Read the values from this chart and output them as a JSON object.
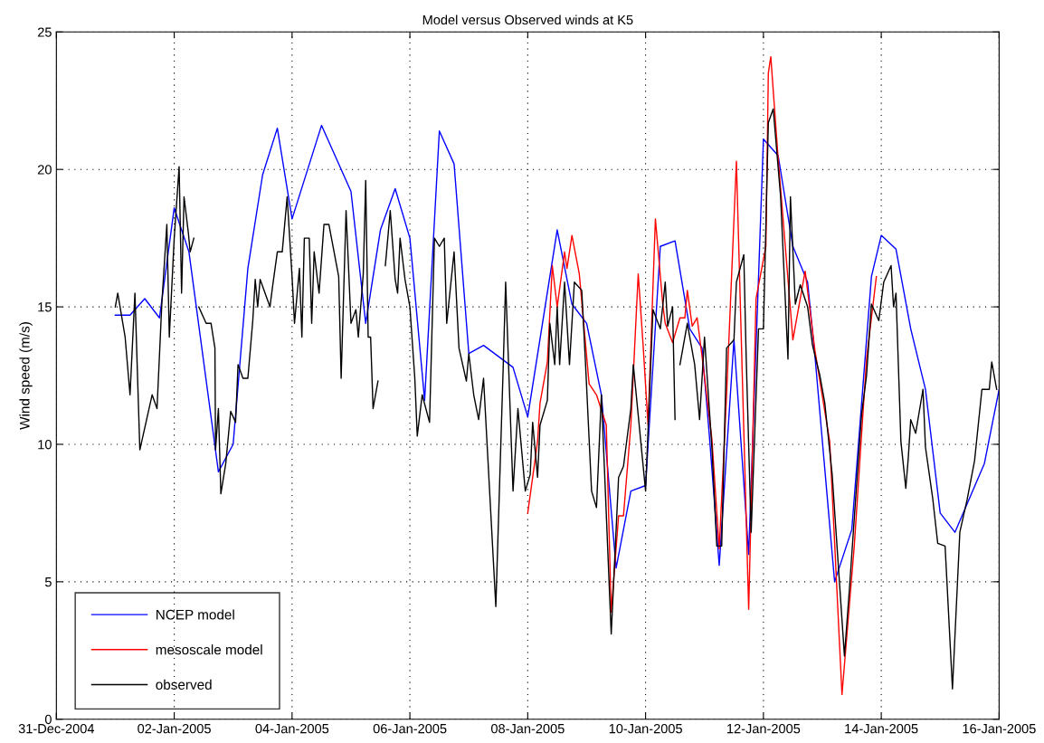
{
  "chart_data": {
    "type": "line",
    "title": "Model versus Observed winds at K5",
    "ylabel": "Wind speed (m/s)",
    "xlim": [
      "2004-12-31",
      "2005-01-16"
    ],
    "xticks": [
      {
        "value": "2004-12-31",
        "label": "31-Dec-2004"
      },
      {
        "value": "2005-01-02",
        "label": "02-Jan-2005"
      },
      {
        "value": "2005-01-04",
        "label": "04-Jan-2005"
      },
      {
        "value": "2005-01-06",
        "label": "06-Jan-2005"
      },
      {
        "value": "2005-01-08",
        "label": "08-Jan-2005"
      },
      {
        "value": "2005-01-10",
        "label": "10-Jan-2005"
      },
      {
        "value": "2005-01-12",
        "label": "12-Jan-2005"
      },
      {
        "value": "2005-01-14",
        "label": "14-Jan-2005"
      },
      {
        "value": "2005-01-16",
        "label": "16-Jan-2005"
      }
    ],
    "ylim": [
      0,
      25
    ],
    "yticks": [
      0,
      5,
      10,
      15,
      20,
      25
    ],
    "grid": true,
    "legend": "bottom left",
    "line_style": "solid",
    "marker": "none",
    "series": [
      {
        "name": "NCEP model",
        "color": "#0000ff",
        "x": [
          "2005-01-01T00:00",
          "2005-01-01T06:00",
          "2005-01-01T12:00",
          "2005-01-01T18:00",
          "2005-01-02T00:00",
          "2005-01-02T06:00",
          "2005-01-02T18:00",
          "2005-01-03T00:00",
          "2005-01-03T06:00",
          "2005-01-03T12:00",
          "2005-01-03T18:00",
          "2005-01-04T00:00",
          "2005-01-04T12:00",
          "2005-01-05T00:00",
          "2005-01-05T06:00",
          "2005-01-05T12:00",
          "2005-01-05T18:00",
          "2005-01-06T00:00",
          "2005-01-06T06:00",
          "2005-01-06T12:00",
          "2005-01-06T18:00",
          "2005-01-07T00:00",
          "2005-01-07T06:00",
          "2005-01-07T18:00",
          "2005-01-08T00:00",
          "2005-01-08T12:00",
          "2005-01-08T18:00",
          "2005-01-09T00:00",
          "2005-01-09T06:00",
          "2005-01-09T12:00",
          "2005-01-09T18:00",
          "2005-01-10T00:00",
          "2005-01-10T06:00",
          "2005-01-10T12:00",
          "2005-01-10T18:00",
          "2005-01-10T23:00",
          "2005-01-11T02:00",
          "2005-01-11T06:00",
          "2005-01-11T12:00",
          "2005-01-11T18:00",
          "2005-01-12T00:00",
          "2005-01-12T06:00",
          "2005-01-12T12:00",
          "2005-01-12T18:00",
          "2005-01-12T21:00",
          "2005-01-13T05:00",
          "2005-01-13T12:00",
          "2005-01-13T20:00",
          "2005-01-14T00:00",
          "2005-01-14T06:00",
          "2005-01-14T12:00",
          "2005-01-14T18:00",
          "2005-01-15T00:00",
          "2005-01-15T06:00",
          "2005-01-15T18:00",
          "2005-01-16T00:00"
        ],
        "values": [
          14.7,
          14.7,
          15.3,
          14.6,
          18.6,
          17.0,
          9.0,
          10.0,
          16.4,
          19.8,
          21.5,
          18.2,
          21.6,
          19.2,
          14.4,
          17.8,
          19.3,
          17.5,
          11.6,
          21.4,
          20.2,
          13.3,
          13.6,
          12.8,
          11.0,
          17.8,
          15.1,
          14.4,
          11.8,
          5.5,
          8.3,
          8.5,
          17.2,
          17.4,
          14.2,
          13.5,
          10.3,
          5.6,
          13.8,
          6.0,
          21.1,
          20.5,
          17.2,
          15.9,
          13.2,
          5.0,
          6.9,
          16.1,
          17.6,
          17.1,
          14.2,
          12.0,
          7.5,
          6.8,
          9.3,
          12.0
        ]
      },
      {
        "name": "mesoscale model",
        "color": "#ff0000",
        "x": [
          "2005-01-08T00:00",
          "2005-01-08T04:00",
          "2005-01-08T05:00",
          "2005-01-08T08:00",
          "2005-01-08T10:00",
          "2005-01-08T12:00",
          "2005-01-08T15:00",
          "2005-01-08T16:00",
          "2005-01-08T18:00",
          "2005-01-08T21:00",
          "2005-01-09T01:00",
          "2005-01-09T04:00",
          "2005-01-09T08:00",
          "2005-01-09T10:00",
          "2005-01-09T13:00",
          "2005-01-09T15:00",
          "2005-01-09T18:00",
          "2005-01-09T21:00",
          "2005-01-09T23:00",
          "2005-01-10T01:00",
          "2005-01-10T04:00",
          "2005-01-10T07:00",
          "2005-01-10T08:00",
          "2005-01-10T11:00",
          "2005-01-10T14:00",
          "2005-01-10T16:00",
          "2005-01-10T17:00",
          "2005-01-10T19:00",
          "2005-01-10T21:00",
          "2005-01-10T23:00",
          "2005-01-11T03:00",
          "2005-01-11T06:00",
          "2005-01-11T09:00",
          "2005-01-11T13:00",
          "2005-01-11T18:00",
          "2005-01-11T21:00",
          "2005-01-12T01:00",
          "2005-01-12T02:00",
          "2005-01-12T03:00",
          "2005-01-12T06:00",
          "2005-01-12T12:00",
          "2005-01-12T14:00",
          "2005-01-12T17:00",
          "2005-01-12T21:00",
          "2005-01-13T03:00",
          "2005-01-13T08:00",
          "2005-01-13T13:00",
          "2005-01-13T18:00",
          "2005-01-13T22:00"
        ],
        "values": [
          7.5,
          10.1,
          11.5,
          13.0,
          16.5,
          15.0,
          17.0,
          16.4,
          17.6,
          16.2,
          12.2,
          11.8,
          10.7,
          3.9,
          7.4,
          7.4,
          10.7,
          16.2,
          13.6,
          10.7,
          18.2,
          15.1,
          14.4,
          13.7,
          14.6,
          14.6,
          15.6,
          14.3,
          14.6,
          13.2,
          10.2,
          6.2,
          11.8,
          20.3,
          4.0,
          15.3,
          17.2,
          23.5,
          24.1,
          20.4,
          13.8,
          14.8,
          16.3,
          13.4,
          10.1,
          0.9,
          6.3,
          13.1,
          16.1
        ]
      },
      {
        "name": "observed",
        "color": "#000000",
        "x": [
          "2005-01-01T00:00",
          "2005-01-01T01:00",
          "2005-01-01T04:00",
          "2005-01-01T06:00",
          "2005-01-01T08:00",
          "2005-01-01T10:00",
          "2005-01-01T13:00",
          "2005-01-01T15:00",
          "2005-01-01T17:00",
          "2005-01-01T19:00",
          "2005-01-01T21:00",
          "2005-01-01T22:00",
          "2005-01-02T00:00",
          "2005-01-02T02:00",
          "2005-01-02T03:00",
          "2005-01-02T04:00",
          "2005-01-02T05:45",
          "2005-01-02T06:30",
          "2005-01-02T08:00",
          "2005-01-02T09:00",
          "2005-01-02T10:00",
          "2005-01-02T13:00",
          "2005-01-02T15:00",
          "2005-01-02T16:35",
          "2005-01-02T16:50",
          "2005-01-02T18:00",
          "2005-01-02T19:00",
          "2005-01-02T21:00",
          "2005-01-02T23:00",
          "2005-01-03T01:00",
          "2005-01-03T02:00",
          "2005-01-03T04:00",
          "2005-01-03T06:00",
          "2005-01-03T08:00",
          "2005-01-03T09:00",
          "2005-01-03T10:00",
          "2005-01-03T11:00",
          "2005-01-03T15:00",
          "2005-01-03T16:00",
          "2005-01-03T18:00",
          "2005-01-03T20:00",
          "2005-01-03T22:00",
          "2005-01-04T00:00",
          "2005-01-04T01:00",
          "2005-01-04T03:00",
          "2005-01-04T04:00",
          "2005-01-04T05:00",
          "2005-01-04T07:00",
          "2005-01-04T08:00",
          "2005-01-04T09:00",
          "2005-01-04T11:00",
          "2005-01-04T13:00",
          "2005-01-04T15:00",
          "2005-01-04T19:00",
          "2005-01-04T20:00",
          "2005-01-04T22:00",
          "2005-01-05T00:00",
          "2005-01-05T02:00",
          "2005-01-05T03:00",
          "2005-01-05T05:00",
          "2005-01-05T06:00",
          "2005-01-05T07:00",
          "2005-01-05T08:00",
          "2005-01-05T09:00",
          "2005-01-05T11:00",
          "2005-01-05T12:00",
          "2005-01-05T14:00",
          "2005-01-05T16:00",
          "2005-01-05T18:00",
          "2005-01-05T19:00",
          "2005-01-05T20:00",
          "2005-01-05T22:00",
          "2005-01-06T00:00",
          "2005-01-06T02:00",
          "2005-01-06T03:00",
          "2005-01-06T05:00",
          "2005-01-06T08:00",
          "2005-01-06T10:00",
          "2005-01-06T12:00",
          "2005-01-06T14:00",
          "2005-01-06T15:00",
          "2005-01-06T18:00",
          "2005-01-06T20:00",
          "2005-01-06T23:00",
          "2005-01-07T00:00",
          "2005-01-07T02:00",
          "2005-01-07T04:00",
          "2005-01-07T06:00",
          "2005-01-07T11:00",
          "2005-01-07T14:00",
          "2005-01-07T15:00",
          "2005-01-07T18:00",
          "2005-01-07T20:00",
          "2005-01-07T23:00",
          "2005-01-08T01:00",
          "2005-01-08T02:00",
          "2005-01-08T04:00",
          "2005-01-08T05:00",
          "2005-01-08T08:00",
          "2005-01-08T09:00",
          "2005-01-08T11:00",
          "2005-01-08T12:00",
          "2005-01-08T13:00",
          "2005-01-08T15:00",
          "2005-01-08T17:00",
          "2005-01-08T19:00",
          "2005-01-08T22:00",
          "2005-01-08T23:30",
          "2005-01-09T02:00",
          "2005-01-09T04:00",
          "2005-01-09T06:00",
          "2005-01-09T10:00",
          "2005-01-09T13:00",
          "2005-01-09T15:00",
          "2005-01-09T18:00",
          "2005-01-09T19:00",
          "2005-01-10T00:00",
          "2005-01-10T03:00",
          "2005-01-10T06:00",
          "2005-01-10T08:00",
          "2005-01-10T09:00",
          "2005-01-10T11:00",
          "2005-01-10T12:00",
          "2005-01-10T13:00",
          "2005-01-10T14:00",
          "2005-01-10T17:00",
          "2005-01-10T20:00",
          "2005-01-10T22:00",
          "2005-01-11T00:00",
          "2005-01-11T03:00",
          "2005-01-11T05:00",
          "2005-01-11T07:00",
          "2005-01-11T09:00",
          "2005-01-11T12:00",
          "2005-01-11T13:00",
          "2005-01-11T16:00",
          "2005-01-11T17:00",
          "2005-01-11T19:00",
          "2005-01-11T22:00",
          "2005-01-12T00:00",
          "2005-01-12T02:00",
          "2005-01-12T04:00",
          "2005-01-12T07:00",
          "2005-01-12T10:00",
          "2005-01-12T11:00",
          "2005-01-12T13:00",
          "2005-01-12T15:00",
          "2005-01-12T18:00",
          "2005-01-12T20:00",
          "2005-01-12T23:00",
          "2005-01-13T01:00",
          "2005-01-13T04:00",
          "2005-01-13T09:00",
          "2005-01-13T11:00",
          "2005-01-13T14:00",
          "2005-01-13T16:00",
          "2005-01-13T18:00",
          "2005-01-13T20:00",
          "2005-01-13T23:00",
          "2005-01-14T01:00",
          "2005-01-14T04:00",
          "2005-01-14T05:00",
          "2005-01-14T06:00",
          "2005-01-14T08:00",
          "2005-01-14T10:00",
          "2005-01-14T11:00",
          "2005-01-14T12:00",
          "2005-01-14T14:00",
          "2005-01-14T17:00",
          "2005-01-14T18:00",
          "2005-01-14T21:00",
          "2005-01-14T23:00",
          "2005-01-15T02:00",
          "2005-01-15T05:00",
          "2005-01-15T08:00",
          "2005-01-15T11:00",
          "2005-01-15T14:00",
          "2005-01-15T17:00",
          "2005-01-15T20:00",
          "2005-01-15T21:00",
          "2005-01-15T23:00"
        ],
        "values": [
          15.0,
          15.5,
          13.9,
          11.8,
          15.5,
          9.8,
          11.0,
          11.8,
          11.3,
          15.2,
          18.0,
          13.9,
          17.5,
          20.1,
          15.5,
          19.0,
          17.7,
          17.0,
          17.5,
          null,
          15.0,
          14.4,
          14.4,
          13.5,
          9.8,
          11.3,
          8.2,
          9.3,
          11.2,
          10.8,
          12.9,
          12.4,
          12.4,
          14.5,
          16.0,
          15.0,
          16.0,
          15.0,
          15.7,
          17.0,
          17.0,
          19.0,
          16.1,
          14.4,
          16.4,
          13.9,
          17.5,
          17.5,
          14.4,
          17.0,
          15.5,
          18.0,
          18.0,
          16.1,
          12.4,
          18.5,
          14.4,
          14.9,
          13.9,
          16.2,
          19.6,
          13.9,
          13.9,
          11.3,
          12.3,
          null,
          16.5,
          18.5,
          16.0,
          15.5,
          17.5,
          16.0,
          15.0,
          12.4,
          10.3,
          11.8,
          10.8,
          17.5,
          17.2,
          17.5,
          14.4,
          17.0,
          13.5,
          12.3,
          13.3,
          11.8,
          10.9,
          12.4,
          4.1,
          12.8,
          15.9,
          8.3,
          11.3,
          8.3,
          8.9,
          10.8,
          8.8,
          10.7,
          11.6,
          14.4,
          12.9,
          15.0,
          12.9,
          15.9,
          12.9,
          15.9,
          15.6,
          13.0,
          8.3,
          7.7,
          11.8,
          3.1,
          8.8,
          9.2,
          11.3,
          12.9,
          8.3,
          14.9,
          14.2,
          15.9,
          14.3,
          15.0,
          10.9,
          null,
          12.9,
          14.4,
          12.9,
          10.9,
          13.9,
          9.9,
          6.3,
          6.3,
          13.5,
          13.8,
          15.9,
          16.9,
          13.1,
          6.8,
          14.2,
          14.2,
          21.7,
          22.2,
          19.0,
          13.1,
          19.0,
          15.1,
          15.8,
          15.0,
          13.6,
          12.5,
          11.5,
          8.9,
          2.3,
          4.7,
          8.6,
          11.1,
          12.5,
          15.1,
          14.5,
          15.9,
          16.5,
          15.0,
          15.5,
          10.1,
          8.4,
          9.5,
          10.9,
          10.4,
          12.0,
          9.9,
          8.0,
          6.4,
          6.3,
          1.1,
          6.8,
          8.0,
          9.4,
          12.0,
          12.0,
          13.0,
          12.0
        ]
      }
    ]
  }
}
